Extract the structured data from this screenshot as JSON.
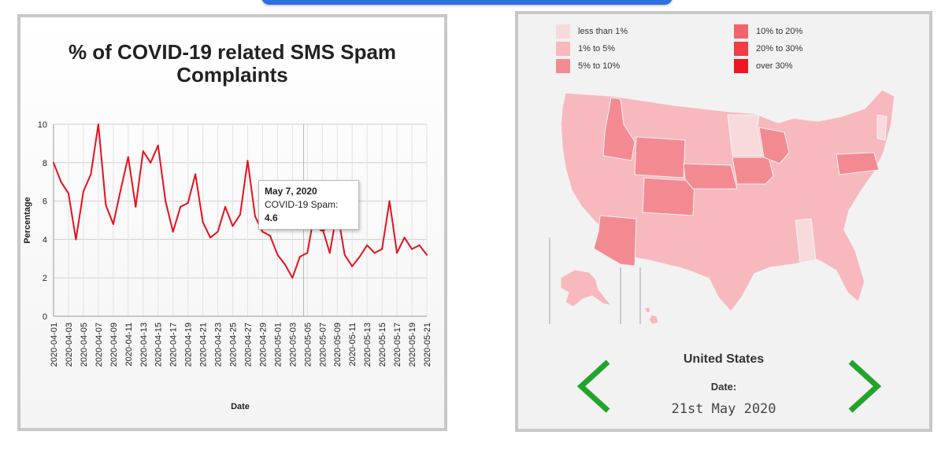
{
  "chart_data": {
    "type": "line",
    "title": "% of COVID-19 related SMS Spam Complaints",
    "xlabel": "Date",
    "ylabel": "Percentage",
    "ylim": [
      0,
      10
    ],
    "yticks": [
      0,
      2,
      4,
      6,
      8,
      10
    ],
    "grid": true,
    "x_tick_labels": [
      "2020-04-01",
      "2020-04-03",
      "2020-04-05",
      "2020-04-07",
      "2020-04-09",
      "2020-04-11",
      "2020-04-13",
      "2020-04-15",
      "2020-04-17",
      "2020-04-19",
      "2020-04-21",
      "2020-04-23",
      "2020-04-25",
      "2020-04-27",
      "2020-04-29",
      "2020-05-01",
      "2020-05-03",
      "2020-05-05",
      "2020-05-07",
      "2020-05-09",
      "2020-05-11",
      "2020-05-13",
      "2020-05-15",
      "2020-05-17",
      "2020-05-19",
      "2020-05-21"
    ],
    "series": [
      {
        "color": "#e8101c",
        "x_start": "2020-04-01",
        "values": [
          8.0,
          7.0,
          6.4,
          4.0,
          6.5,
          7.4,
          10.0,
          5.8,
          4.8,
          6.6,
          8.3,
          5.7,
          8.6,
          8.0,
          8.9,
          6.0,
          4.4,
          5.7,
          5.9,
          7.4,
          4.9,
          4.1,
          4.4,
          5.7,
          4.7,
          5.3,
          8.1,
          5.2,
          4.4,
          4.2,
          3.2,
          2.7,
          2.0,
          3.1,
          3.3,
          5.5,
          4.6,
          3.3,
          5.5,
          3.2,
          2.6,
          3.1,
          3.7,
          3.3,
          3.5,
          6.0,
          3.3,
          4.1,
          3.5,
          3.7,
          3.2
        ]
      }
    ],
    "highlight": {
      "date": "2020-05-07",
      "value": 4.6
    },
    "tooltip": {
      "date": "May 7, 2020",
      "label": "COVID-19 Spam: ",
      "value": "4.6"
    }
  },
  "map": {
    "legend": [
      {
        "label": "less than 1%",
        "color": "#f8dadd"
      },
      {
        "label": "1% to 5%",
        "color": "#f7b9bd"
      },
      {
        "label": "5% to 10%",
        "color": "#f48a91"
      },
      {
        "label": "10% to 20%",
        "color": "#f2636b"
      },
      {
        "label": "20% to 30%",
        "color": "#f23c46"
      },
      {
        "label": "over 30%",
        "color": "#ee1622"
      }
    ],
    "region_name": "United States",
    "date_label": "Date:",
    "date_value": "21st May 2020",
    "prev_icon": "chevron-left-icon",
    "next_icon": "chevron-right-icon",
    "arrow_color": "#22a32a"
  }
}
